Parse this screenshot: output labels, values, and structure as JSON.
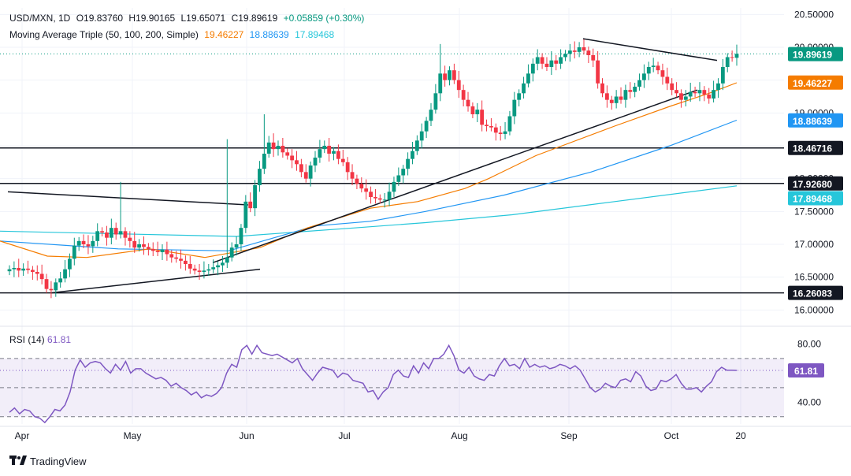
{
  "header": {
    "symbol": "USD/MXN, 1D",
    "open": "O19.83760",
    "high": "H19.90165",
    "low": "L19.65071",
    "close": "C19.89619",
    "change": "+0.05859 (+0.30%)",
    "ma_label": "Moving Average Triple (50, 100, 200, Simple)",
    "ma50_value": "19.46227",
    "ma100_value": "18.88639",
    "ma200_value": "17.89468"
  },
  "rsi": {
    "label": "RSI (14)",
    "value": "61.81",
    "value_num": 61.81
  },
  "brand": {
    "name": "TradingView"
  },
  "colors": {
    "up": "#089981",
    "down": "#f23645",
    "ma50": "#f57c00",
    "ma100": "#2196f3",
    "ma200": "#26c6da",
    "rsi": "#7e57c2",
    "level": "#131722",
    "text": "#131722"
  },
  "chart_data": {
    "type": "candlestick",
    "instrument": "USD/MXN",
    "timeframe": "1D",
    "x_ticks": [
      "Apr",
      "May",
      "Jun",
      "Jul",
      "Aug",
      "Sep",
      "Oct",
      "20"
    ],
    "y_ticks": [
      "20.50000",
      "20.00000",
      "19.50000",
      "19.00000",
      "18.50000",
      "18.00000",
      "17.50000",
      "17.00000",
      "16.50000",
      "16.00000"
    ],
    "ylim": [
      15.8,
      20.6
    ],
    "price_labels": [
      {
        "text": "19.89619",
        "value": 19.89619,
        "style": "green"
      },
      {
        "text": "19.46227",
        "value": 19.46227,
        "style": "orange"
      },
      {
        "text": "18.88639",
        "value": 18.88639,
        "style": "blue"
      },
      {
        "text": "18.46716",
        "value": 18.46716,
        "style": "dark"
      },
      {
        "text": "17.92680",
        "value": 17.9268,
        "style": "dark"
      },
      {
        "text": "17.89468",
        "value": 17.89468,
        "style": "cyan"
      },
      {
        "text": "16.26083",
        "value": 16.26083,
        "style": "dark"
      }
    ],
    "horizontal_levels": [
      18.46716,
      17.9268,
      16.26083
    ],
    "rsi_ticks": [
      "80.00",
      "40.00"
    ],
    "rsi_ylim": [
      25,
      90
    ],
    "rsi_bands": [
      70,
      50,
      30
    ],
    "closes": [
      16.62,
      16.64,
      16.6,
      16.63,
      16.61,
      16.58,
      16.55,
      16.47,
      16.32,
      16.3,
      16.42,
      16.48,
      16.62,
      16.78,
      16.98,
      17.05,
      17.0,
      16.97,
      17.05,
      17.2,
      17.18,
      17.1,
      17.25,
      17.15,
      17.2,
      17.1,
      17.05,
      16.95,
      17.0,
      16.96,
      16.93,
      16.9,
      16.88,
      16.92,
      16.85,
      16.8,
      16.78,
      16.75,
      16.7,
      16.63,
      16.6,
      16.58,
      16.6,
      16.62,
      16.65,
      16.68,
      16.72,
      16.8,
      16.95,
      17.0,
      17.25,
      17.65,
      17.55,
      17.9,
      18.15,
      18.38,
      18.55,
      18.45,
      18.5,
      18.4,
      18.35,
      18.28,
      18.22,
      18.1,
      18.0,
      18.2,
      18.32,
      18.45,
      18.5,
      18.38,
      18.42,
      18.3,
      18.25,
      18.1,
      18.0,
      17.92,
      17.85,
      17.8,
      17.72,
      17.7,
      17.68,
      17.68,
      17.8,
      17.95,
      18.05,
      18.15,
      18.3,
      18.42,
      18.58,
      18.72,
      18.88,
      19.05,
      19.3,
      19.6,
      19.5,
      19.65,
      19.5,
      19.35,
      19.2,
      19.1,
      18.98,
      19.05,
      18.82,
      18.8,
      18.78,
      18.7,
      18.68,
      18.72,
      18.95,
      19.2,
      19.3,
      19.45,
      19.6,
      19.75,
      19.85,
      19.75,
      19.7,
      19.8,
      19.75,
      19.85,
      19.9,
      19.95,
      19.93,
      20.0,
      19.95,
      19.88,
      19.8,
      19.45,
      19.3,
      19.2,
      19.15,
      19.25,
      19.2,
      19.35,
      19.32,
      19.4,
      19.5,
      19.6,
      19.7,
      19.72,
      19.65,
      19.55,
      19.45,
      19.35,
      19.3,
      19.2,
      19.25,
      19.32,
      19.3,
      19.35,
      19.28,
      19.22,
      19.35,
      19.45,
      19.7,
      19.85,
      19.84,
      19.9
    ],
    "ma50": [
      [
        0,
        17.05
      ],
      [
        60,
        16.82
      ],
      [
        110,
        16.8
      ],
      [
        190,
        16.93
      ],
      [
        260,
        16.8
      ],
      [
        330,
        16.95
      ],
      [
        390,
        17.25
      ],
      [
        470,
        17.55
      ],
      [
        530,
        17.65
      ],
      [
        590,
        17.85
      ],
      [
        620,
        18.0
      ],
      [
        680,
        18.35
      ],
      [
        780,
        18.8
      ],
      [
        850,
        19.1
      ],
      [
        900,
        19.3
      ],
      [
        935,
        19.46
      ]
    ],
    "ma100": [
      [
        0,
        17.05
      ],
      [
        150,
        16.93
      ],
      [
        290,
        16.9
      ],
      [
        400,
        17.28
      ],
      [
        470,
        17.35
      ],
      [
        540,
        17.5
      ],
      [
        640,
        17.75
      ],
      [
        750,
        18.1
      ],
      [
        850,
        18.5
      ],
      [
        935,
        18.89
      ]
    ],
    "ma200": [
      [
        0,
        17.2
      ],
      [
        150,
        17.16
      ],
      [
        300,
        17.12
      ],
      [
        450,
        17.25
      ],
      [
        540,
        17.33
      ],
      [
        650,
        17.45
      ],
      [
        780,
        17.65
      ],
      [
        935,
        17.89
      ]
    ],
    "trendlines": [
      {
        "from": [
          10,
          17.8
        ],
        "to": [
          315,
          17.6
        ]
      },
      {
        "from": [
          65,
          16.26
        ],
        "to": [
          330,
          16.62
        ]
      },
      {
        "from": [
          270,
          16.72
        ],
        "to": [
          885,
          19.35
        ]
      },
      {
        "from": [
          740,
          20.13
        ],
        "to": [
          910,
          19.8
        ]
      }
    ],
    "rsi_values": [
      33,
      36,
      32,
      35,
      34,
      30,
      29,
      26,
      30,
      35,
      34,
      38,
      47,
      62,
      69,
      64,
      67,
      68,
      67,
      63,
      60,
      66,
      62,
      68,
      60,
      63,
      63,
      60,
      58,
      56,
      57,
      55,
      51,
      53,
      50,
      48,
      45,
      47,
      43,
      45,
      44,
      46,
      50,
      60,
      66,
      64,
      76,
      79,
      73,
      79,
      74,
      73,
      72,
      73,
      71,
      69,
      67,
      70,
      63,
      59,
      55,
      60,
      64,
      63,
      62,
      57,
      60,
      59,
      55,
      54,
      53,
      47,
      48,
      42,
      47,
      50,
      59,
      62,
      58,
      57,
      65,
      60,
      67,
      63,
      70,
      70,
      73,
      79,
      72,
      62,
      60,
      64,
      58,
      56,
      55,
      59,
      58,
      65,
      70,
      65,
      66,
      63,
      70,
      64,
      66,
      64,
      65,
      63,
      64,
      66,
      65,
      63,
      65,
      62,
      56,
      50,
      47,
      49,
      53,
      51,
      50,
      55,
      56,
      54,
      61,
      58,
      51,
      48,
      49,
      55,
      54,
      56,
      59,
      53,
      49,
      49,
      50,
      47,
      51,
      54,
      61,
      64,
      62,
      62,
      61.81
    ]
  }
}
